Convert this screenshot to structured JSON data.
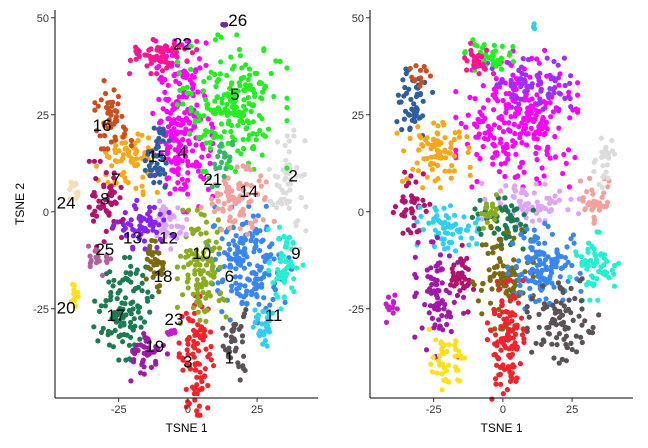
{
  "chart_data": [
    {
      "type": "scatter",
      "title": "",
      "xlabel": "TSNE 1",
      "ylabel": "TSNE 2",
      "xlim": [
        -48,
        47
      ],
      "ylim": [
        -48,
        52
      ],
      "xticks": [
        -25,
        0,
        25
      ],
      "yticks": [
        -25,
        0,
        25,
        50
      ],
      "grid": false,
      "legend": "none",
      "clusters": [
        {
          "label": "1",
          "color": "#5a5256",
          "x": 17,
          "y": -33,
          "sx": 2,
          "sy": 5,
          "n": 35,
          "lx": 15,
          "ly": -38
        },
        {
          "label": "2",
          "color": "#dcdcdc",
          "x": 36,
          "y": 8,
          "sx": 3,
          "sy": 8,
          "n": 60,
          "lx": 38,
          "ly": 9
        },
        {
          "label": "3",
          "color": "#f2232a",
          "x": 3,
          "y": -37,
          "sx": 3,
          "sy": 7,
          "n": 90,
          "lx": 0,
          "ly": -39
        },
        {
          "label": "4",
          "color": "#ff00ff",
          "x": -2,
          "y": 22,
          "sx": 5,
          "sy": 10,
          "n": 220,
          "lx": -2,
          "ly": 15
        },
        {
          "label": "5",
          "color": "#22ee22",
          "x": 16,
          "y": 28,
          "sx": 9,
          "sy": 8,
          "n": 200,
          "lx": 17,
          "ly": 30
        },
        {
          "label": "6",
          "color": "#3a86f0",
          "x": 22,
          "y": -14,
          "sx": 7,
          "sy": 7,
          "n": 170,
          "lx": 15,
          "ly": -17
        },
        {
          "label": "7",
          "color": "#f5a81c",
          "x": -22,
          "y": 13,
          "sx": 5,
          "sy": 4,
          "n": 70,
          "lx": -26,
          "ly": 8
        },
        {
          "label": "8",
          "color": "#b0136e",
          "x": -29,
          "y": 2,
          "sx": 3,
          "sy": 5,
          "n": 50,
          "lx": -30,
          "ly": 3
        },
        {
          "label": "9",
          "color": "#22f0d0",
          "x": 35,
          "y": -14,
          "sx": 3,
          "sy": 5,
          "n": 50,
          "lx": 39,
          "ly": -11
        },
        {
          "label": "10",
          "color": "#8bac22",
          "x": 5,
          "y": -15,
          "sx": 4,
          "sy": 7,
          "n": 110,
          "lx": 5,
          "ly": -11
        },
        {
          "label": "11",
          "color": "#2ecff0",
          "x": 27,
          "y": -28,
          "sx": 2,
          "sy": 3,
          "n": 30,
          "lx": 31,
          "ly": -27
        },
        {
          "label": "12",
          "color": "#dca6f5",
          "x": -7,
          "y": -3,
          "sx": 3,
          "sy": 3,
          "n": 40,
          "lx": -7,
          "ly": -7
        },
        {
          "label": "13",
          "color": "#8822ee",
          "x": -16,
          "y": -3,
          "sx": 5,
          "sy": 3,
          "n": 60,
          "lx": -20,
          "ly": -7
        },
        {
          "label": "14",
          "color": "#f5a09a",
          "x": 18,
          "y": 3,
          "sx": 6,
          "sy": 4,
          "n": 80,
          "lx": 22,
          "ly": 5
        },
        {
          "label": "15",
          "color": "#2f5d9e",
          "x": -11,
          "y": 13,
          "sx": 2,
          "sy": 4,
          "n": 45,
          "lx": -11,
          "ly": 14
        },
        {
          "label": "16",
          "color": "#c9501e",
          "x": -27,
          "y": 25,
          "sx": 3,
          "sy": 4,
          "n": 50,
          "lx": -31,
          "ly": 22
        },
        {
          "label": "17",
          "color": "#1e7a52",
          "x": -23,
          "y": -25,
          "sx": 5,
          "sy": 6,
          "n": 110,
          "lx": -26,
          "ly": -27
        },
        {
          "label": "18",
          "color": "#7a6a12",
          "x": -12,
          "y": -14,
          "sx": 2,
          "sy": 3,
          "n": 35,
          "lx": -9,
          "ly": -17
        },
        {
          "label": "19",
          "color": "#a01aa8",
          "x": -14,
          "y": -37,
          "sx": 3,
          "sy": 3,
          "n": 40,
          "lx": -12,
          "ly": -35
        },
        {
          "label": "20",
          "color": "#ffe01a",
          "x": -41,
          "y": -21,
          "sx": 1,
          "sy": 2,
          "n": 12,
          "lx": -44,
          "ly": -25
        },
        {
          "label": "21",
          "color": "#3bb36a",
          "x": 12,
          "y": 13,
          "sx": 2,
          "sy": 3,
          "n": 20,
          "lx": 9,
          "ly": 8
        },
        {
          "label": "22",
          "color": "#ff1493",
          "x": -10,
          "y": 40,
          "sx": 6,
          "sy": 2,
          "n": 60,
          "lx": -2,
          "ly": 43
        },
        {
          "label": "23",
          "color": "#c21ec9",
          "x": -6,
          "y": -31,
          "sx": 1,
          "sy": 1,
          "n": 10,
          "lx": -5,
          "ly": -28
        },
        {
          "label": "24",
          "color": "#f5deb3",
          "x": -41,
          "y": 6,
          "sx": 1,
          "sy": 2,
          "n": 12,
          "lx": -44,
          "ly": 2
        },
        {
          "label": "25",
          "color": "#b3609e",
          "x": -32,
          "y": -12,
          "sx": 2,
          "sy": 2,
          "n": 20,
          "lx": -30,
          "ly": -10
        },
        {
          "label": "26",
          "color": "#6b2aa0",
          "x": 13,
          "y": 48,
          "sx": 0.5,
          "sy": 0.5,
          "n": 3,
          "lx": 18,
          "ly": 49
        }
      ]
    },
    {
      "type": "scatter",
      "title": "",
      "xlabel": "TSNE 1",
      "ylabel": "",
      "xlim": [
        -48,
        47
      ],
      "ylim": [
        -48,
        52
      ],
      "xticks": [
        -25,
        0,
        25
      ],
      "yticks": [
        -25,
        0,
        25,
        50
      ],
      "grid": false,
      "legend": "none",
      "clusters": [
        {
          "color": "#ff00ff",
          "x": 5,
          "y": 24,
          "sx": 10,
          "sy": 8,
          "n": 260
        },
        {
          "color": "#9b30ff",
          "x": 12,
          "y": 33,
          "sx": 8,
          "sy": 3,
          "n": 70
        },
        {
          "color": "#22ee22",
          "x": -5,
          "y": 40,
          "sx": 4,
          "sy": 2,
          "n": 40
        },
        {
          "color": "#ff1493",
          "x": -10,
          "y": 40,
          "sx": 3,
          "sy": 2,
          "n": 25
        },
        {
          "color": "#2f5d9e",
          "x": -32,
          "y": 28,
          "sx": 3,
          "sy": 4,
          "n": 50
        },
        {
          "color": "#f5a81c",
          "x": -25,
          "y": 15,
          "sx": 6,
          "sy": 4,
          "n": 80
        },
        {
          "color": "#dca6f5",
          "x": 10,
          "y": 2,
          "sx": 8,
          "sy": 3,
          "n": 70
        },
        {
          "color": "#f5a09a",
          "x": 33,
          "y": 2,
          "sx": 3,
          "sy": 3,
          "n": 35
        },
        {
          "color": "#dcdcdc",
          "x": 36,
          "y": 12,
          "sx": 2,
          "sy": 4,
          "n": 25
        },
        {
          "color": "#b0136e",
          "x": -33,
          "y": 2,
          "sx": 3,
          "sy": 4,
          "n": 40
        },
        {
          "color": "#2ecff0",
          "x": -20,
          "y": -4,
          "sx": 5,
          "sy": 3,
          "n": 60
        },
        {
          "color": "#1e7a52",
          "x": 0,
          "y": -3,
          "sx": 5,
          "sy": 3,
          "n": 55
        },
        {
          "color": "#a01aa8",
          "x": -23,
          "y": -22,
          "sx": 4,
          "sy": 7,
          "n": 90
        },
        {
          "color": "#b0136e",
          "x": -15,
          "y": -17,
          "sx": 2,
          "sy": 4,
          "n": 35
        },
        {
          "color": "#7a6a12",
          "x": 0,
          "y": -17,
          "sx": 5,
          "sy": 6,
          "n": 90
        },
        {
          "color": "#3a86f0",
          "x": 15,
          "y": -14,
          "sx": 6,
          "sy": 5,
          "n": 130
        },
        {
          "color": "#22f0d0",
          "x": 33,
          "y": -14,
          "sx": 4,
          "sy": 4,
          "n": 60
        },
        {
          "color": "#5a5256",
          "x": 22,
          "y": -28,
          "sx": 6,
          "sy": 5,
          "n": 90
        },
        {
          "color": "#f2232a",
          "x": 1,
          "y": -34,
          "sx": 3,
          "sy": 8,
          "n": 110
        },
        {
          "color": "#ffe01a",
          "x": -20,
          "y": -38,
          "sx": 3,
          "sy": 4,
          "n": 45
        },
        {
          "color": "#c21ec9",
          "x": -40,
          "y": -25,
          "sx": 1,
          "sy": 2,
          "n": 12
        },
        {
          "color": "#c9501e",
          "x": -30,
          "y": 35,
          "sx": 2,
          "sy": 2,
          "n": 12
        },
        {
          "color": "#8bac22",
          "x": -5,
          "y": 0,
          "sx": 2,
          "sy": 2,
          "n": 20
        },
        {
          "color": "#2ecff0",
          "x": 11,
          "y": 48,
          "sx": 0.5,
          "sy": 0.5,
          "n": 3
        }
      ]
    }
  ]
}
